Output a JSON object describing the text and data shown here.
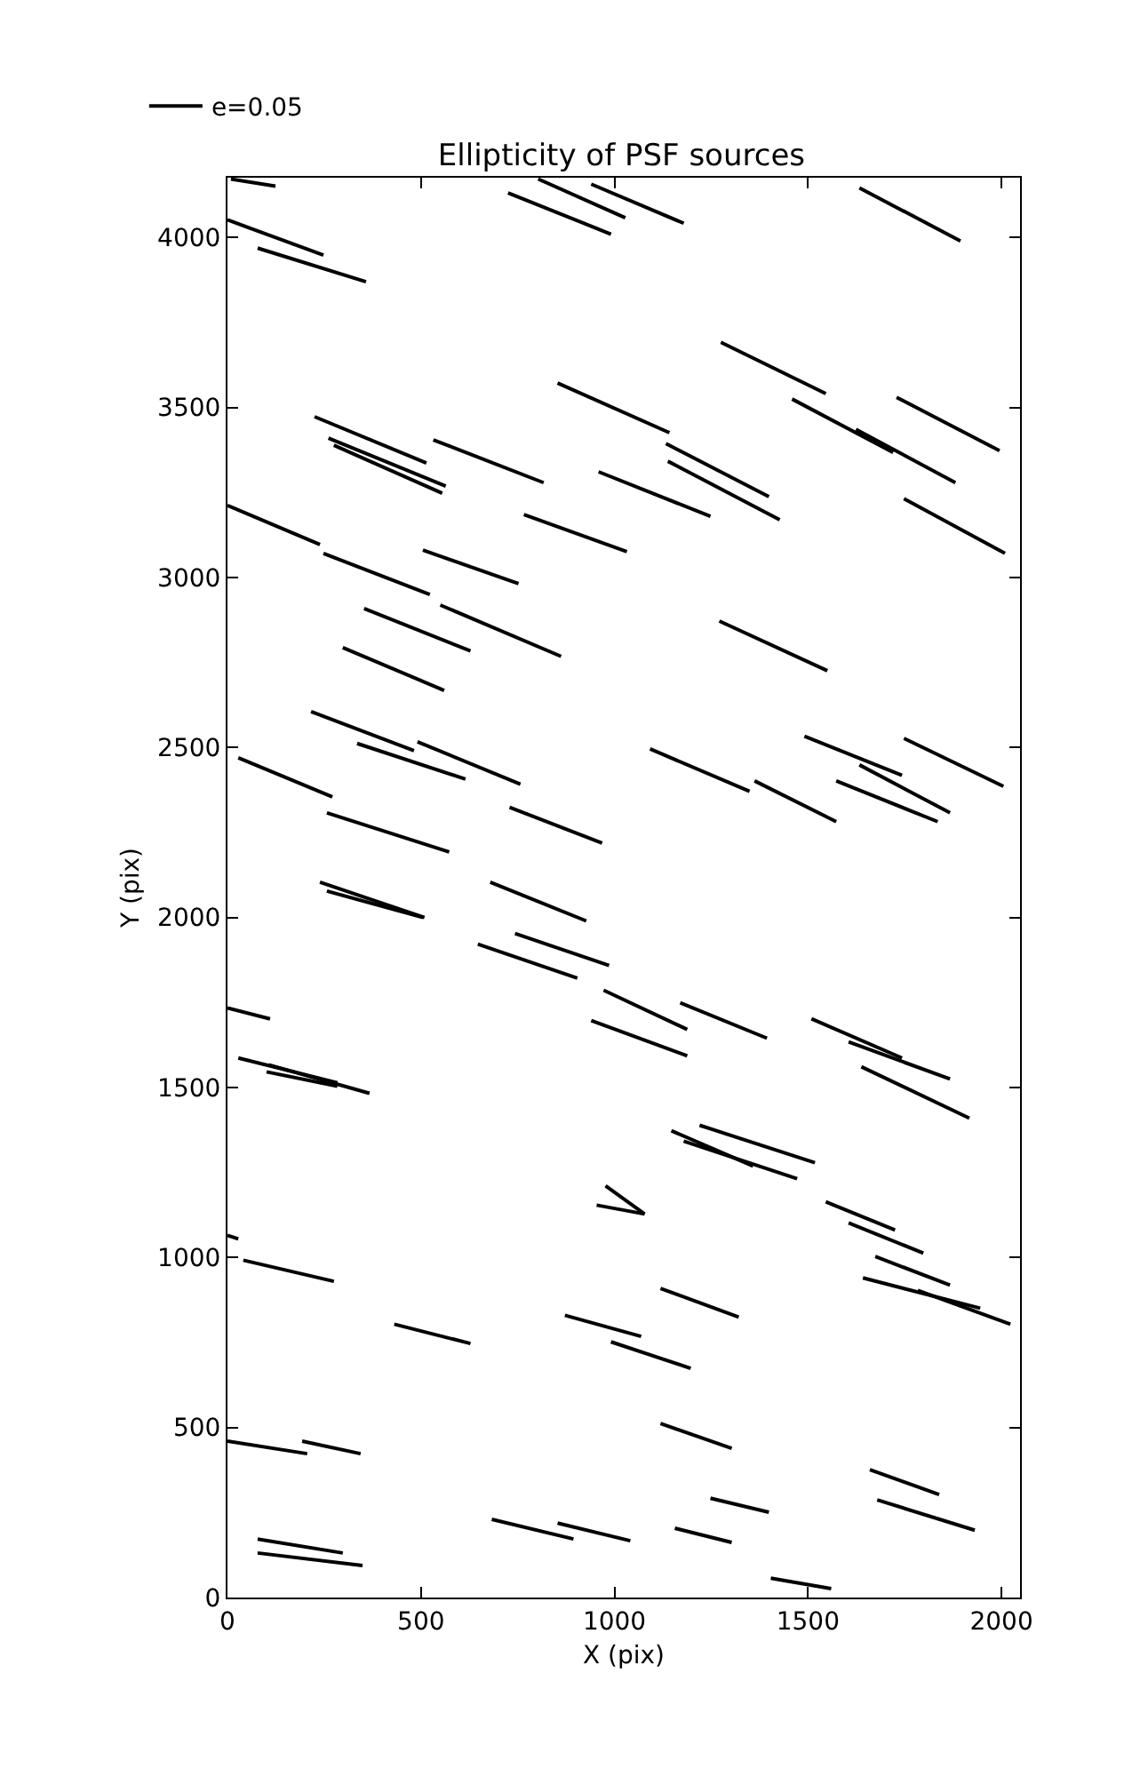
{
  "chart_data": {
    "type": "line",
    "title": "Ellipticity of PSF sources",
    "xlabel": "X (pix)",
    "ylabel": "Y (pix)",
    "xlim": [
      0,
      2048
    ],
    "ylim": [
      0,
      4176
    ],
    "xticks": [
      0,
      500,
      1000,
      1500,
      2000
    ],
    "yticks": [
      0,
      500,
      1000,
      1500,
      2000,
      2500,
      3000,
      3500,
      4000
    ],
    "grid": false,
    "legend": "top left",
    "marker": "none",
    "line_style": "solid",
    "series": [
      {
        "name": "e=0.05",
        "color": "#000000",
        "x": [
          9,
          124,
          null,
          0,
          248,
          null,
          78,
          358,
          null,
          803,
          1028,
          null,
          725,
          991,
          null,
          940,
          1179,
          null,
          1633,
          1894,
          null,
          1275,
          1546,
          null,
          1459,
          1720,
          null,
          1729,
          1995,
          null,
          853,
          1142,
          null,
          225,
          514,
          null,
          261,
          564,
          null,
          275,
          555,
          null,
          532,
          817,
          null,
          959,
          1248,
          null,
          1133,
          1399,
          null,
          1138,
          1427,
          null,
          1624,
          1881,
          null,
          1748,
          2009,
          null,
          0,
          239,
          null,
          248,
          523,
          null,
          505,
          752,
          null,
          766,
          1032,
          null,
          550,
          862,
          null,
          353,
          628,
          null,
          298,
          560,
          null,
          1271,
          1550,
          null,
          216,
          482,
          null,
          28,
          271,
          null,
          335,
          615,
          null,
          491,
          757,
          null,
          1092,
          1349,
          null,
          1362,
          1573,
          null,
          1491,
          1743,
          null,
          1573,
          1835,
          null,
          1633,
          1867,
          null,
          1748,
          2005,
          null,
          257,
          573,
          null,
          729,
          968,
          null,
          679,
          927,
          null,
          239,
          509,
          null,
          257,
          505,
          null,
          647,
          904,
          null,
          743,
          986,
          null,
          972,
          1188,
          null,
          940,
          1188,
          null,
          1170,
          1394,
          null,
          0,
          110,
          null,
          1509,
          1743,
          null,
          1605,
          1867,
          null,
          1638,
          1917,
          null,
          28,
          284,
          null,
          106,
          367,
          null,
          101,
          284,
          null,
          1147,
          1358,
          null,
          1220,
          1518,
          null,
          1179,
          1472,
          null,
          977,
          1078,
          null,
          954,
          1078,
          null,
          1546,
          1725,
          null,
          1605,
          1798,
          null,
          0,
          28,
          null,
          41,
          275,
          null,
          1119,
          1321,
          null,
          1674,
          1867,
          null,
          1642,
          1945,
          null,
          1784,
          2023,
          null,
          431,
          628,
          null,
          872,
          1069,
          null,
          991,
          1197,
          null,
          1119,
          1303,
          null,
          0,
          206,
          null,
          193,
          344,
          null,
          1248,
          1399,
          null,
          683,
          894,
          null,
          853,
          1041,
          null,
          1156,
          1303,
          null,
          1660,
          1839,
          null,
          1679,
          1931,
          null,
          78,
          298,
          null,
          78,
          349,
          null,
          1404,
          1560
        ],
        "values": [
          4172,
          4151,
          null,
          4052,
          3948,
          null,
          3969,
          3870,
          null,
          4172,
          4058,
          null,
          4131,
          4010,
          null,
          4157,
          4042,
          null,
          4146,
          3990,
          null,
          3692,
          3541,
          null,
          3525,
          3368,
          null,
          3530,
          3373,
          null,
          3572,
          3426,
          null,
          3473,
          3337,
          null,
          3410,
          3269,
          null,
          3389,
          3248,
          null,
          3405,
          3279,
          null,
          3311,
          3180,
          null,
          3394,
          3238,
          null,
          3342,
          3170,
          null,
          3436,
          3279,
          null,
          3232,
          3071,
          null,
          3212,
          3097,
          null,
          3071,
          2950,
          null,
          3081,
          2982,
          null,
          3185,
          3076,
          null,
          2919,
          2768,
          null,
          2909,
          2784,
          null,
          2794,
          2668,
          null,
          2872,
          2726,
          null,
          2606,
          2491,
          null,
          2470,
          2355,
          null,
          2512,
          2407,
          null,
          2517,
          2392,
          null,
          2496,
          2371,
          null,
          2402,
          2282,
          null,
          2533,
          2418,
          null,
          2402,
          2282,
          null,
          2449,
          2308,
          null,
          2527,
          2386,
          null,
          2308,
          2193,
          null,
          2324,
          2219,
          null,
          2104,
          1990,
          null,
          2104,
          2000,
          null,
          2078,
          2000,
          null,
          1922,
          1822,
          null,
          1953,
          1859,
          null,
          1786,
          1671,
          null,
          1697,
          1593,
          null,
          1749,
          1645,
          null,
          1734,
          1702,
          null,
          1702,
          1587,
          null,
          1634,
          1525,
          null,
          1561,
          1410,
          null,
          1587,
          1514,
          null,
          1567,
          1483,
          null,
          1546,
          1504,
          null,
          1373,
          1269,
          null,
          1389,
          1279,
          null,
          1342,
          1232,
          null,
          1211,
          1128,
          null,
          1154,
          1128,
          null,
          1164,
          1081,
          null,
          1102,
          1013,
          null,
          1065,
          1055,
          null,
          992,
          930,
          null,
          909,
          825,
          null,
          1003,
          919,
          null,
          940,
          851,
          null,
          903,
          804,
          null,
          804,
          747,
          null,
          830,
          768,
          null,
          752,
          674,
          null,
          512,
          439,
          null,
          460,
          423,
          null,
          460,
          423,
          null,
          292,
          251,
          null,
          230,
          172,
          null,
          219,
          167,
          null,
          204,
          162,
          null,
          376,
          303,
          null,
          287,
          198,
          null,
          172,
          131,
          null,
          131,
          94,
          null,
          57,
          26
        ]
      }
    ]
  }
}
